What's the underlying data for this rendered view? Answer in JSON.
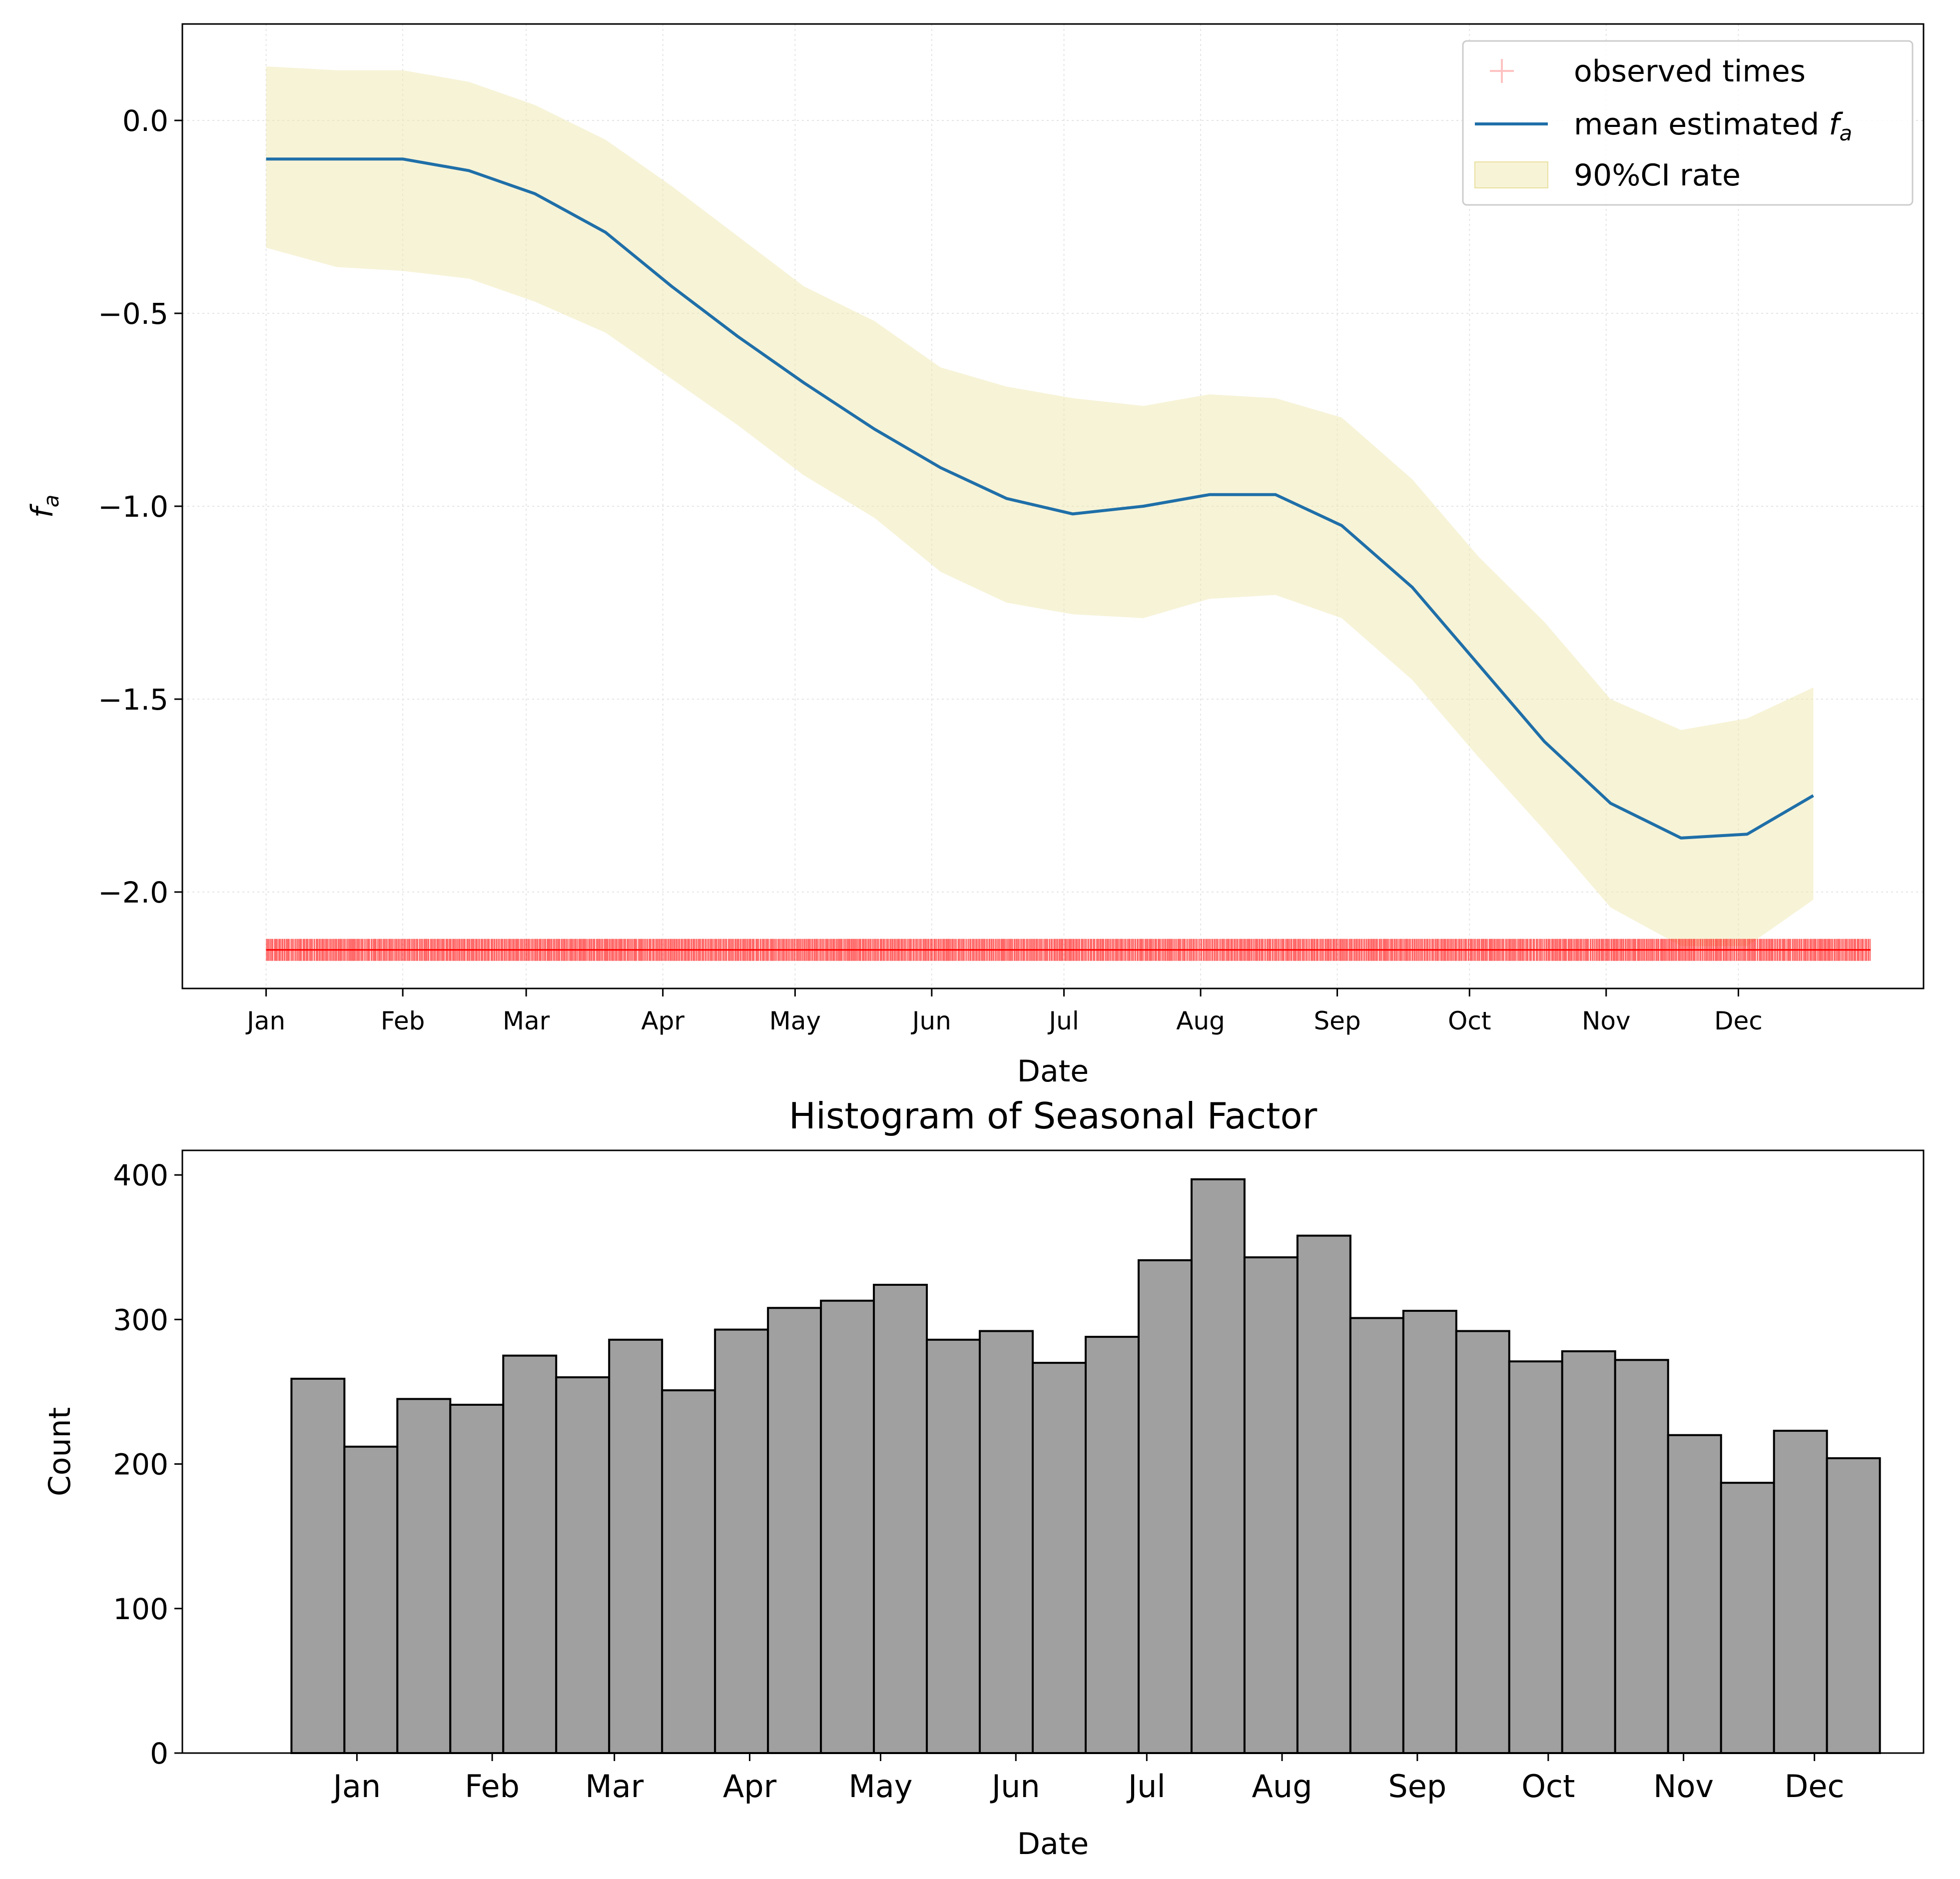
{
  "chart_data": [
    {
      "type": "line",
      "title": "",
      "xlabel": "Date",
      "ylabel": "f_a",
      "ylabel_main": "f",
      "ylabel_sub": "a",
      "ylim": [
        -2.25,
        0.25
      ],
      "yticks": [
        0.0,
        -0.5,
        -1.0,
        -1.5,
        -2.0
      ],
      "ytick_labels": [
        "0.0",
        "−0.5",
        "−1.0",
        "−1.5",
        "−2.0"
      ],
      "x_range": [
        "2000-12-13",
        "2002-01-12"
      ],
      "xticks": [
        "2001-01-01",
        "2001-02-01",
        "2001-03-01",
        "2001-04-01",
        "2001-05-01",
        "2001-06-01",
        "2001-07-01",
        "2001-08-01",
        "2001-09-01",
        "2001-10-01",
        "2001-11-01",
        "2001-12-01"
      ],
      "xtick_labels": [
        "Jan",
        "Feb",
        "Mar",
        "Apr",
        "May",
        "Jun",
        "Jul",
        "Aug",
        "Sep",
        "Oct",
        "Nov",
        "Dec"
      ],
      "grid": true,
      "legend_position": "top-right",
      "legend": {
        "observed": "observed times",
        "mean_main": "mean estimated ",
        "mean_var": "f",
        "mean_sub": "a",
        "ci": "90%CI rate"
      },
      "x": [
        "2001-01-01",
        "2001-01-17",
        "2001-02-01",
        "2001-02-16",
        "2001-03-03",
        "2001-03-19",
        "2001-04-03",
        "2001-04-18",
        "2001-05-03",
        "2001-05-19",
        "2001-06-03",
        "2001-06-18",
        "2001-07-03",
        "2001-07-19",
        "2001-08-03",
        "2001-08-18",
        "2001-09-02",
        "2001-09-18",
        "2001-10-03",
        "2001-10-18",
        "2001-11-02",
        "2001-11-18",
        "2001-12-03",
        "2001-12-18"
      ],
      "series": [
        {
          "name": "mean estimated f_a",
          "values": [
            -0.1,
            -0.1,
            -0.1,
            -0.13,
            -0.19,
            -0.29,
            -0.43,
            -0.56,
            -0.68,
            -0.8,
            -0.9,
            -0.98,
            -1.02,
            -1.0,
            -0.97,
            -0.97,
            -1.05,
            -1.21,
            -1.41,
            -1.61,
            -1.77,
            -1.86,
            -1.85,
            -1.75
          ]
        }
      ],
      "ci_upper": [
        0.14,
        0.13,
        0.13,
        0.1,
        0.04,
        -0.05,
        -0.17,
        -0.3,
        -0.43,
        -0.52,
        -0.64,
        -0.69,
        -0.72,
        -0.74,
        -0.71,
        -0.72,
        -0.77,
        -0.93,
        -1.13,
        -1.3,
        -1.5,
        -1.58,
        -1.55,
        -1.47
      ],
      "ci_lower": [
        -0.33,
        -0.38,
        -0.39,
        -0.41,
        -0.47,
        -0.55,
        -0.67,
        -0.79,
        -0.92,
        -1.03,
        -1.17,
        -1.25,
        -1.28,
        -1.29,
        -1.24,
        -1.23,
        -1.29,
        -1.45,
        -1.65,
        -1.84,
        -2.04,
        -2.14,
        -2.14,
        -2.02
      ],
      "observed_y": -2.15,
      "observed_range": [
        "2001-01-01",
        "2001-12-31"
      ]
    },
    {
      "type": "bar",
      "title": "Histogram of Seasonal Factor",
      "xlabel": "Date",
      "ylabel": "Count",
      "ylim": [
        0,
        417
      ],
      "yticks": [
        0,
        100,
        200,
        300,
        400
      ],
      "ytick_labels": [
        "0",
        "100",
        "200",
        "300",
        "400"
      ],
      "x_range": [
        "2000-12-07",
        "2002-01-10"
      ],
      "bin_start": "2001-01-01",
      "bin_end": "2001-12-31",
      "xticks": [
        "2001-01-16",
        "2001-02-16",
        "2001-03-16",
        "2001-04-16",
        "2001-05-16",
        "2001-06-16",
        "2001-07-16",
        "2001-08-16",
        "2001-09-16",
        "2001-10-16",
        "2001-11-16",
        "2001-12-16"
      ],
      "xtick_labels": [
        "Jan",
        "Feb",
        "Mar",
        "Apr",
        "May",
        "Jun",
        "Jul",
        "Aug",
        "Sep",
        "Oct",
        "Nov",
        "Dec"
      ],
      "bar_color": "#a0a0a0",
      "values": [
        259,
        212,
        245,
        241,
        275,
        260,
        286,
        251,
        293,
        308,
        313,
        324,
        286,
        292,
        270,
        288,
        341,
        397,
        343,
        358,
        301,
        306,
        292,
        271,
        278,
        272,
        220,
        187,
        223,
        204
      ]
    }
  ]
}
